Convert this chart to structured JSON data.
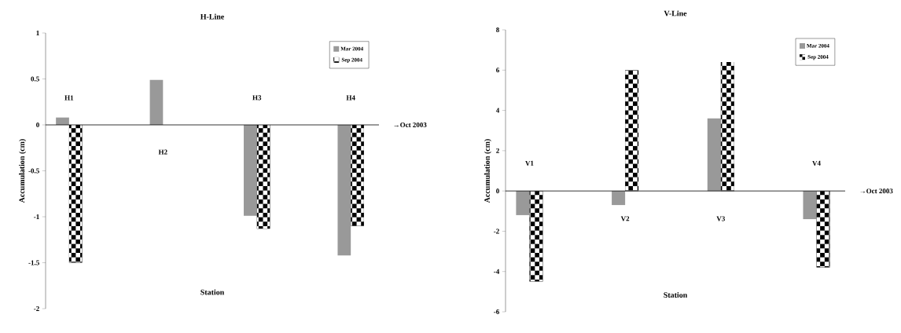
{
  "chart_data": [
    {
      "type": "bar",
      "title": "H-Line",
      "xlabel": "Station",
      "ylabel": "Accumulation (cm)",
      "categories": [
        "H1",
        "H2",
        "H3",
        "H4"
      ],
      "series": [
        {
          "name": "Mar 2004",
          "color": "#999999",
          "values": [
            0.08,
            0.49,
            -0.99,
            -1.42
          ]
        },
        {
          "name": "Sep 2004",
          "color": "#000000",
          "values": [
            -1.5,
            null,
            -1.13,
            -1.1
          ]
        }
      ],
      "ylim": [
        -2,
        1
      ],
      "yticks": [
        -2,
        -1.5,
        -1,
        -0.5,
        0,
        0.5,
        1
      ],
      "legend": "top right",
      "grid": false,
      "ref_lines": [
        {
          "axis": "y",
          "value": 0,
          "label": "→Oct 2003"
        }
      ]
    },
    {
      "type": "bar",
      "title": "V-Line",
      "xlabel": "Station",
      "ylabel": "Accumulation (cm)",
      "categories": [
        "V1",
        "V2",
        "V3",
        "V4"
      ],
      "series": [
        {
          "name": "Mar 2004",
          "color": "#999999",
          "values": [
            -1.2,
            -0.7,
            3.6,
            -1.4
          ]
        },
        {
          "name": "Sep 2004",
          "color": "#000000",
          "values": [
            -4.5,
            6.0,
            6.4,
            -3.8
          ]
        }
      ],
      "ylim": [
        -6,
        8
      ],
      "yticks": [
        -6,
        -4,
        -2,
        0,
        2,
        4,
        6,
        8
      ],
      "legend": "top right",
      "grid": false,
      "ref_lines": [
        {
          "axis": "y",
          "value": 0,
          "label": "→Oct 2003"
        }
      ]
    }
  ]
}
